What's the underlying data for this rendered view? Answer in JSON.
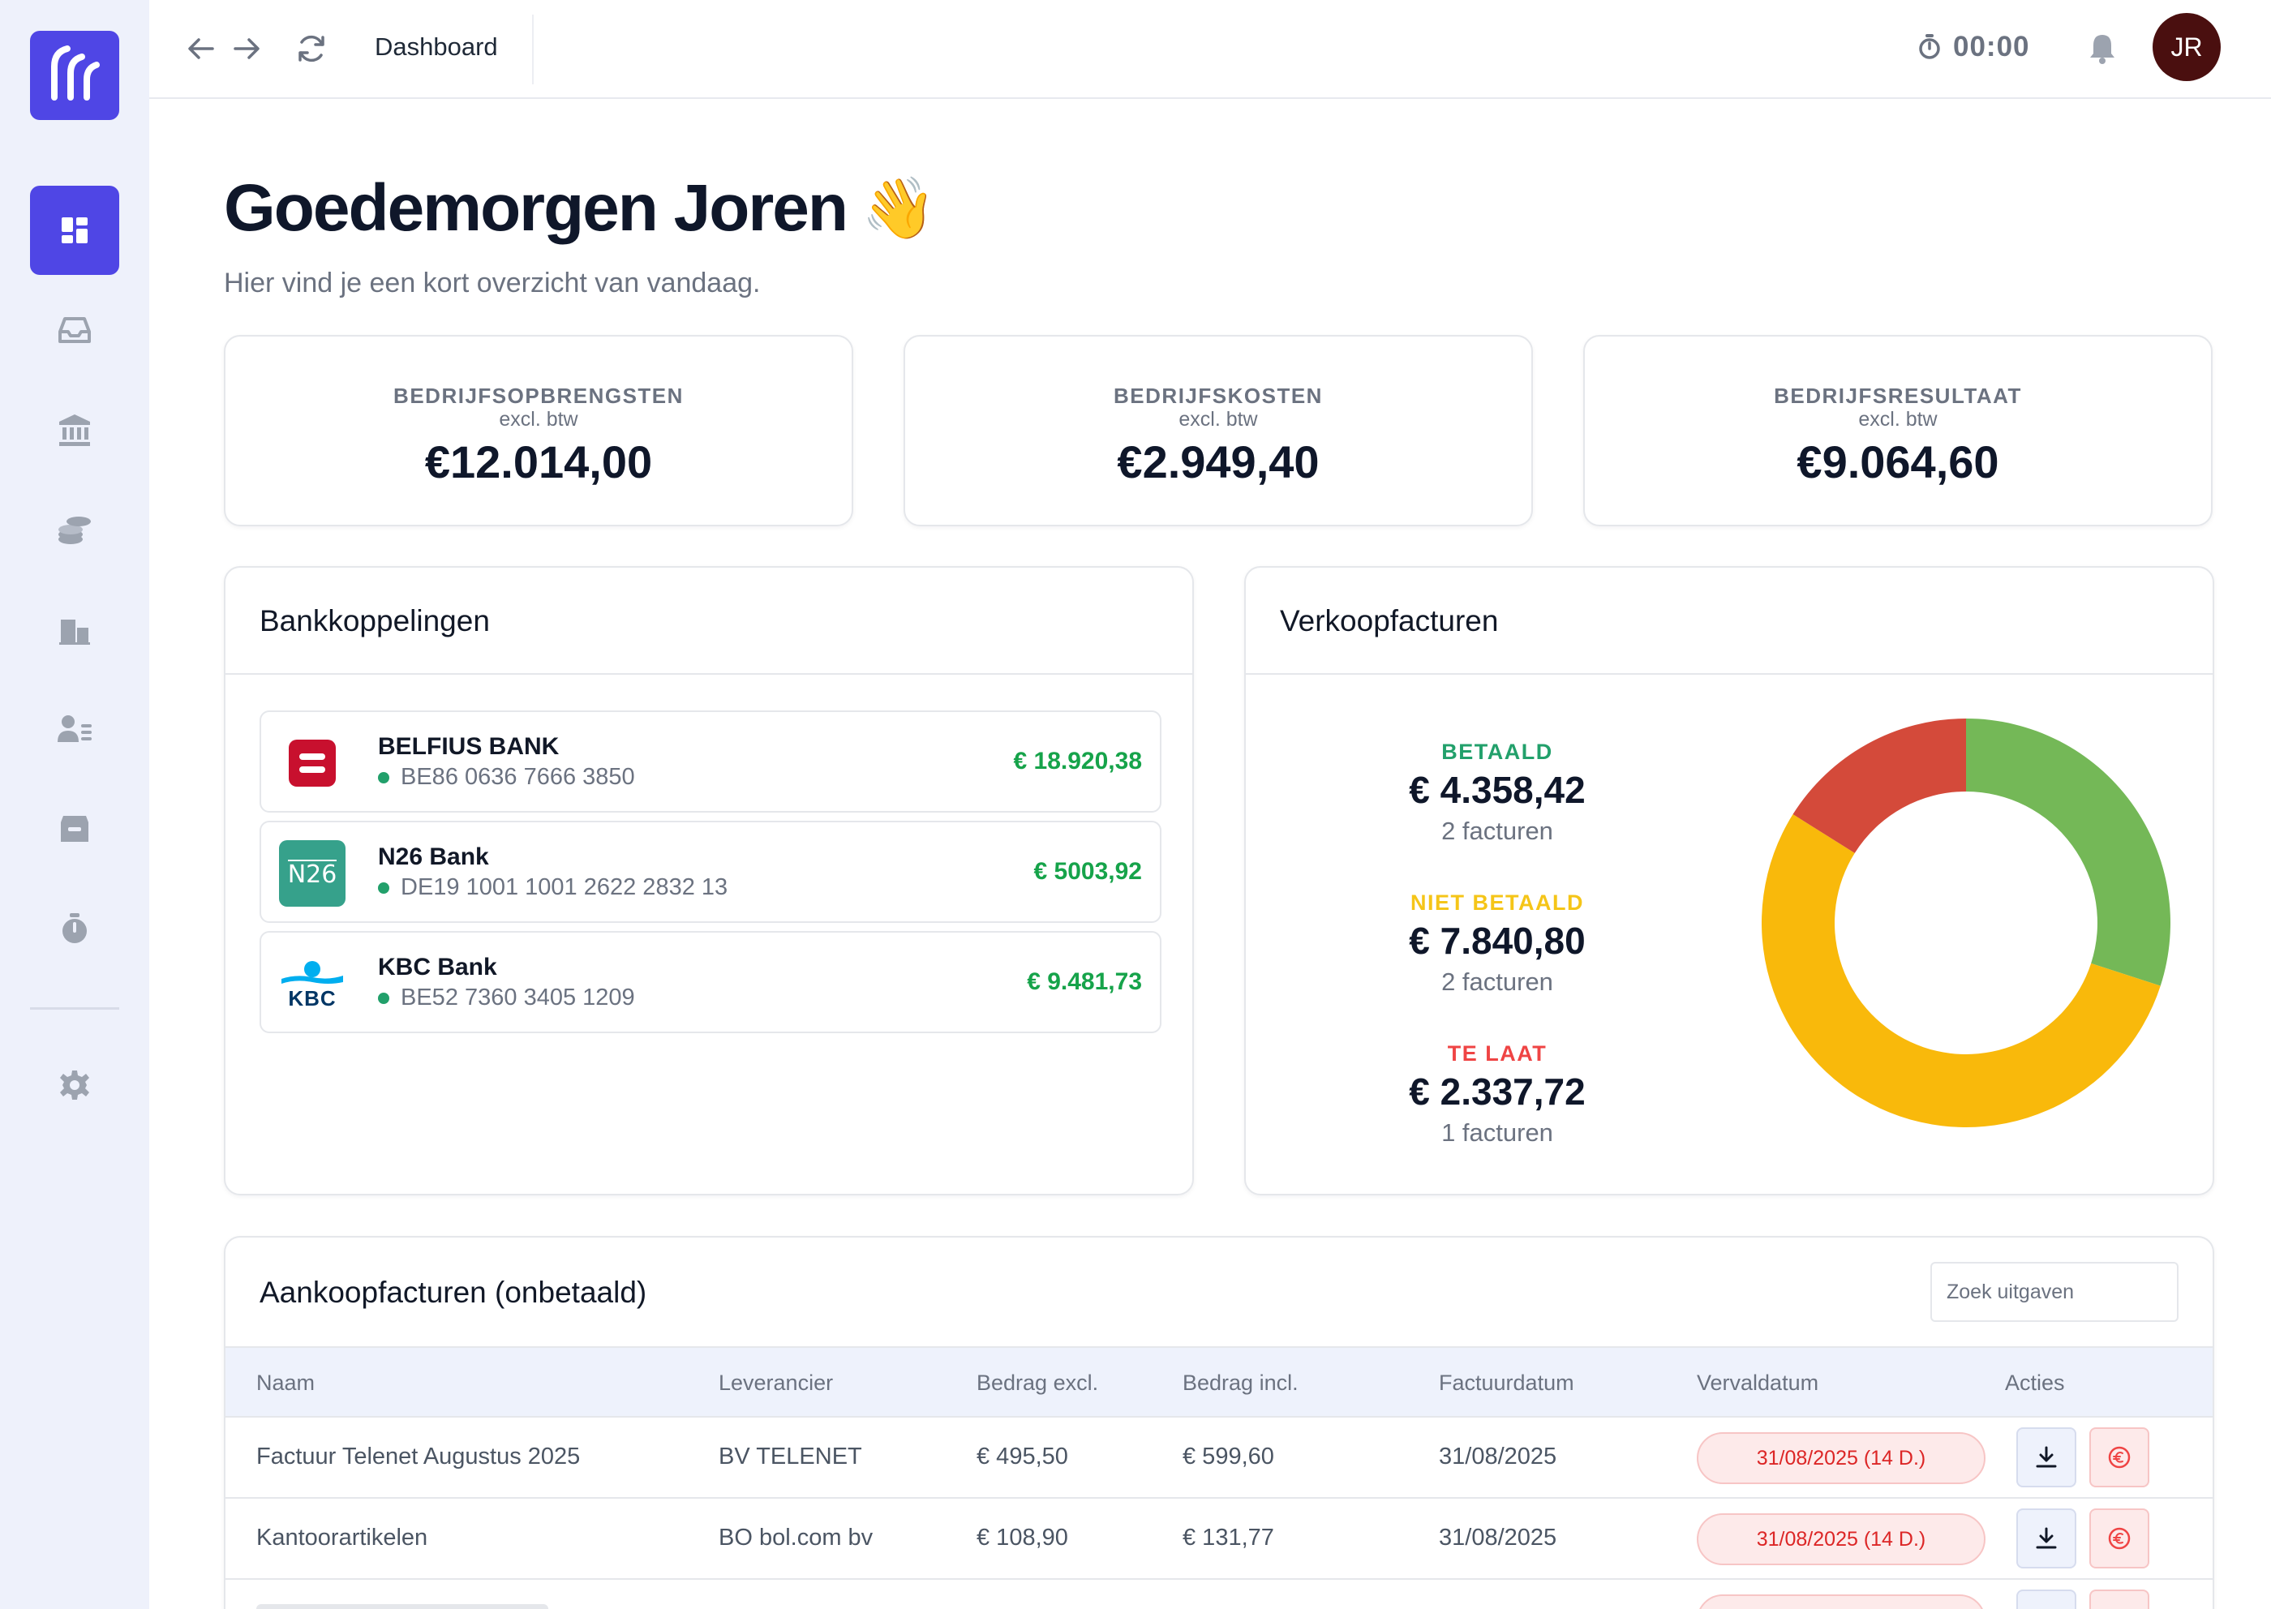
{
  "header": {
    "title": "Dashboard",
    "timer": "00:00",
    "avatar_initials": "JR"
  },
  "sidebar": {
    "items": [
      {
        "icon": "dashboard-icon",
        "active": true
      },
      {
        "icon": "inbox-icon",
        "active": false
      },
      {
        "icon": "bank-icon",
        "active": false
      },
      {
        "icon": "coins-icon",
        "active": false
      },
      {
        "icon": "buildings-icon",
        "active": false
      },
      {
        "icon": "contacts-icon",
        "active": false
      },
      {
        "icon": "archive-icon",
        "active": false
      },
      {
        "icon": "stopwatch-icon",
        "active": false
      },
      {
        "icon": "settings-icon",
        "active": false
      }
    ]
  },
  "greeting": {
    "title": "Goedemorgen Joren",
    "emoji": "👋",
    "subtitle": "Hier vind je een kort overzicht van vandaag."
  },
  "kpis": [
    {
      "label": "BEDRIJFSOPBRENGSTEN",
      "sub": "excl. btw",
      "value": "€12.014,00"
    },
    {
      "label": "BEDRIJFSKOSTEN",
      "sub": "excl. btw",
      "value": "€2.949,40"
    },
    {
      "label": "BEDRIJFSRESULTAAT",
      "sub": "excl. btw",
      "value": "€9.064,60"
    }
  ],
  "banks": {
    "title": "Bankkoppelingen",
    "items": [
      {
        "name": "BELFIUS BANK",
        "iban": "BE86 0636 7666 3850",
        "amount": "€ 18.920,38",
        "logo": "belfius-logo-icon"
      },
      {
        "name": "N26 Bank",
        "iban": "DE19 1001 1001 2622 2832 13",
        "amount": "€ 5003,92",
        "logo": "n26-logo-icon",
        "logo_text": "N26"
      },
      {
        "name": "KBC Bank",
        "iban": "BE52 7360 3405 1209",
        "amount": "€ 9.481,73",
        "logo": "kbc-logo-icon",
        "logo_text": "KBC"
      }
    ]
  },
  "sales": {
    "title": "Verkoopfacturen",
    "groups": [
      {
        "label": "BETAALD",
        "amount": "€ 4.358,42",
        "count": "2 facturen",
        "color": "#22a06b"
      },
      {
        "label": "NIET BETAALD",
        "amount": "€ 7.840,80",
        "count": "2 facturen",
        "color": "#f5c518"
      },
      {
        "label": "TE LAAT",
        "amount": "€ 2.337,72",
        "count": "1 facturen",
        "color": "#ef4444"
      }
    ]
  },
  "chart_data": {
    "type": "pie",
    "categories": [
      "Betaald",
      "Niet betaald",
      "Te laat"
    ],
    "values": [
      4358.42,
      7840.8,
      2337.72
    ],
    "colors": [
      "#74b857",
      "#f9b90b",
      "#d44a3a"
    ],
    "title": ""
  },
  "purchases": {
    "title": "Aankoopfacturen (onbetaald)",
    "search_placeholder": "Zoek uitgaven",
    "columns": [
      "Naam",
      "Leverancier",
      "Bedrag excl.",
      "Bedrag incl.",
      "Factuurdatum",
      "Vervaldatum",
      "Acties"
    ],
    "rows": [
      {
        "name": "Factuur Telenet Augustus 2025",
        "supplier": "BV TELENET",
        "excl": "€ 495,50",
        "incl": "€ 599,60",
        "date": "31/08/2025",
        "due": "31/08/2025 (14 D.)"
      },
      {
        "name": "Kantoorartikelen",
        "supplier": "BO bol.com bv",
        "excl": "€ 108,90",
        "incl": "€ 131,77",
        "date": "31/08/2025",
        "due": "31/08/2025 (14 D.)"
      }
    ]
  }
}
